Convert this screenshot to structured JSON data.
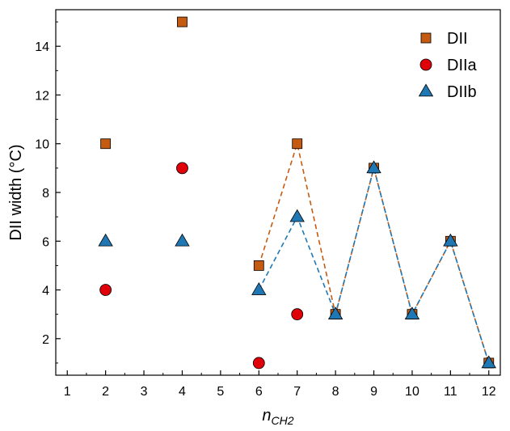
{
  "chart_data": {
    "type": "scatter",
    "xlabel": "n",
    "xlabel_subscript": "CH2",
    "ylabel": "DII width (°C)",
    "xlim": [
      0.7,
      12.3
    ],
    "ylim": [
      0.5,
      15.5
    ],
    "x_ticks": [
      1,
      2,
      3,
      4,
      5,
      6,
      7,
      8,
      9,
      10,
      11,
      12
    ],
    "y_ticks": [
      2,
      4,
      6,
      8,
      10,
      12,
      14
    ],
    "grid": false,
    "legend_position": "top-right",
    "series": [
      {
        "name": "DII",
        "marker": "square",
        "color": "#c55a11",
        "points": [
          [
            2,
            10
          ],
          [
            4,
            15
          ],
          [
            6,
            5
          ],
          [
            7,
            10
          ],
          [
            8,
            3
          ],
          [
            9,
            9
          ],
          [
            10,
            3
          ],
          [
            11,
            6
          ],
          [
            12,
            1
          ]
        ],
        "dashed_line_x_from": 6
      },
      {
        "name": "DIIa",
        "marker": "circle",
        "color": "#e0000a",
        "points": [
          [
            2,
            4
          ],
          [
            4,
            9
          ],
          [
            6,
            1
          ],
          [
            7,
            3
          ]
        ]
      },
      {
        "name": "DIIb",
        "marker": "triangle",
        "color": "#1f78b4",
        "points": [
          [
            2,
            6
          ],
          [
            4,
            6
          ],
          [
            6,
            4
          ],
          [
            7,
            7
          ],
          [
            8,
            3
          ],
          [
            9,
            9
          ],
          [
            10,
            3
          ],
          [
            11,
            6
          ],
          [
            12,
            1
          ]
        ],
        "dashed_line_x_from": 6
      }
    ]
  }
}
